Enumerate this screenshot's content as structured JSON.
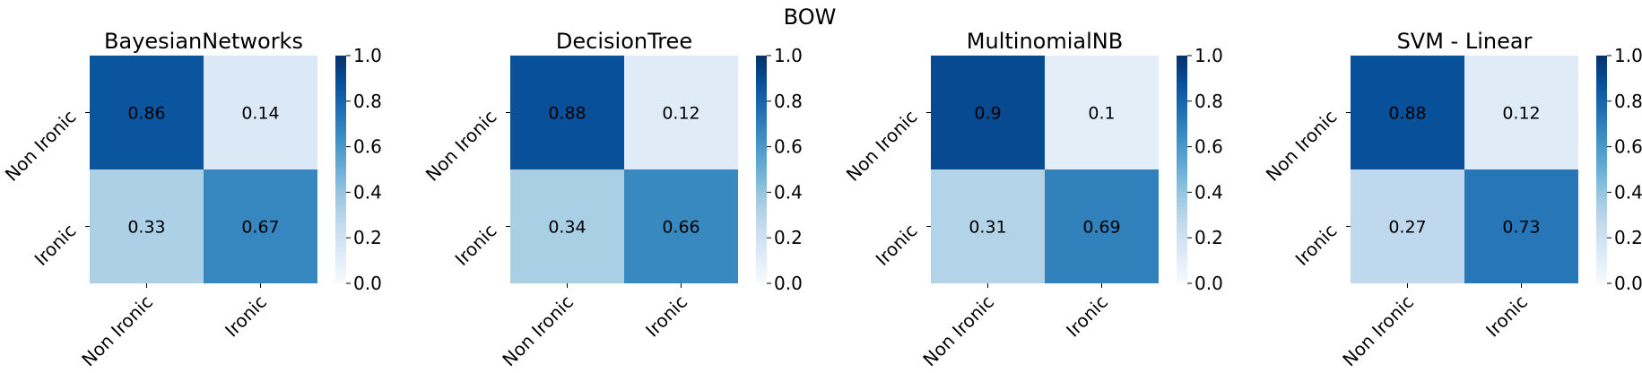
{
  "figure": {
    "suptitle": "BOW"
  },
  "chart_data": [
    {
      "type": "heatmap",
      "title": "BayesianNetworks",
      "row_labels": [
        "Non Ironic",
        "Ironic"
      ],
      "col_labels": [
        "Non Ironic",
        "Ironic"
      ],
      "values": [
        [
          0.86,
          0.14
        ],
        [
          0.33,
          0.67
        ]
      ],
      "colorbar": {
        "range": [
          0,
          1
        ],
        "ticks": [
          "0.0",
          "0.2",
          "0.4",
          "0.6",
          "0.8",
          "1.0"
        ]
      }
    },
    {
      "type": "heatmap",
      "title": "DecisionTree",
      "row_labels": [
        "Non Ironic",
        "Ironic"
      ],
      "col_labels": [
        "Non Ironic",
        "Ironic"
      ],
      "values": [
        [
          0.88,
          0.12
        ],
        [
          0.34,
          0.66
        ]
      ],
      "colorbar": {
        "range": [
          0,
          1
        ],
        "ticks": [
          "0.0",
          "0.2",
          "0.4",
          "0.6",
          "0.8",
          "1.0"
        ]
      }
    },
    {
      "type": "heatmap",
      "title": "MultinomialNB",
      "row_labels": [
        "Non Ironic",
        "Ironic"
      ],
      "col_labels": [
        "Non Ironic",
        "Ironic"
      ],
      "values": [
        [
          0.9,
          0.1
        ],
        [
          0.31,
          0.69
        ]
      ],
      "colorbar": {
        "range": [
          0,
          1
        ],
        "ticks": [
          "0.0",
          "0.2",
          "0.4",
          "0.6",
          "0.8",
          "1.0"
        ]
      }
    },
    {
      "type": "heatmap",
      "title": "SVM - Linear",
      "row_labels": [
        "Non Ironic",
        "Ironic"
      ],
      "col_labels": [
        "Non Ironic",
        "Ironic"
      ],
      "values": [
        [
          0.88,
          0.12
        ],
        [
          0.27,
          0.73
        ]
      ],
      "colorbar": {
        "range": [
          0,
          1
        ],
        "ticks": [
          "0.0",
          "0.2",
          "0.4",
          "0.6",
          "0.8",
          "1.0"
        ]
      }
    }
  ]
}
